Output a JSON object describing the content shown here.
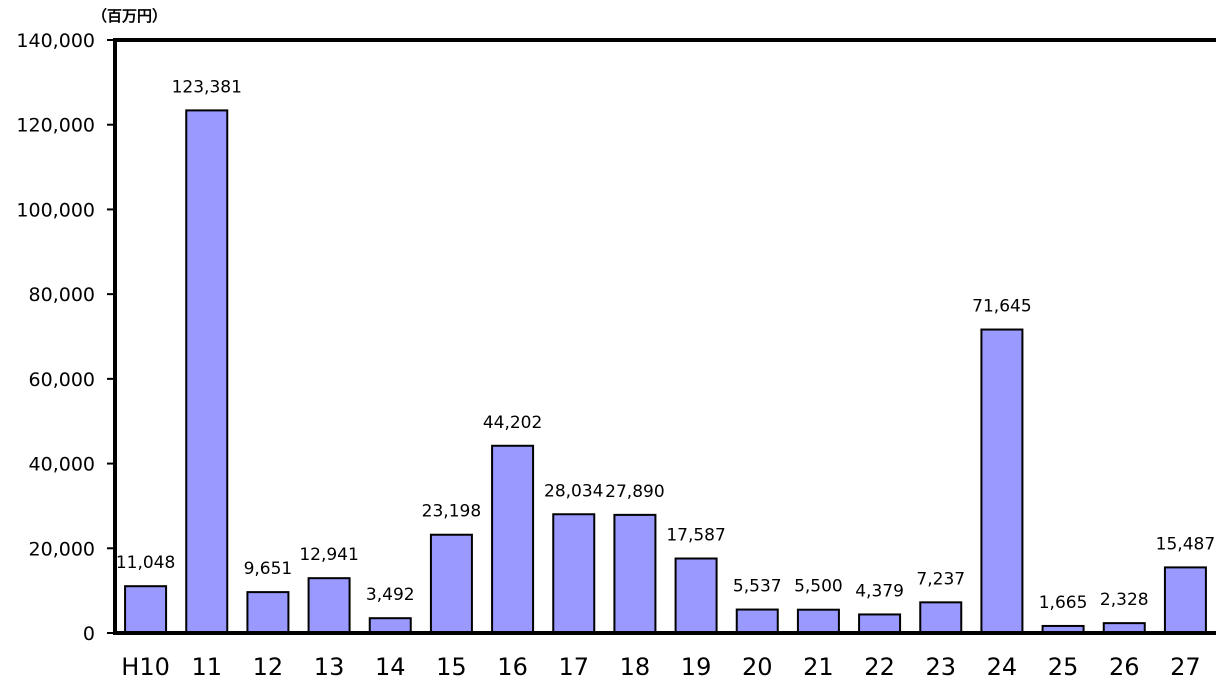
{
  "chart_data": {
    "type": "bar",
    "unit_label": "（百万円）",
    "categories": [
      "H10",
      "11",
      "12",
      "13",
      "14",
      "15",
      "16",
      "17",
      "18",
      "19",
      "20",
      "21",
      "22",
      "23",
      "24",
      "25",
      "26",
      "27"
    ],
    "values": [
      11048,
      123381,
      9651,
      12941,
      3492,
      23198,
      44202,
      28034,
      27890,
      17587,
      5537,
      5500,
      4379,
      7237,
      71645,
      1665,
      2328,
      15487
    ],
    "data_labels": [
      "11,048",
      "123,381",
      "9,651",
      "12,941",
      "3,492",
      "23,198",
      "44,202",
      "28,034",
      "27,890",
      "17,587",
      "5,537",
      "5,500",
      "4,379",
      "7,237",
      "71,645",
      "1,665",
      "2,328",
      "15,487"
    ],
    "ylim": [
      0,
      140000
    ],
    "yticks": [
      0,
      20000,
      40000,
      60000,
      80000,
      100000,
      120000,
      140000
    ],
    "ytick_labels": [
      "0",
      "20,000",
      "40,000",
      "60,000",
      "80,000",
      "100,000",
      "120,000",
      "140,000"
    ],
    "xlabel": "",
    "ylabel": "",
    "grid": false,
    "legend": "none",
    "bar_color": "#9999ff",
    "bar_edge_color": "#000000"
  }
}
